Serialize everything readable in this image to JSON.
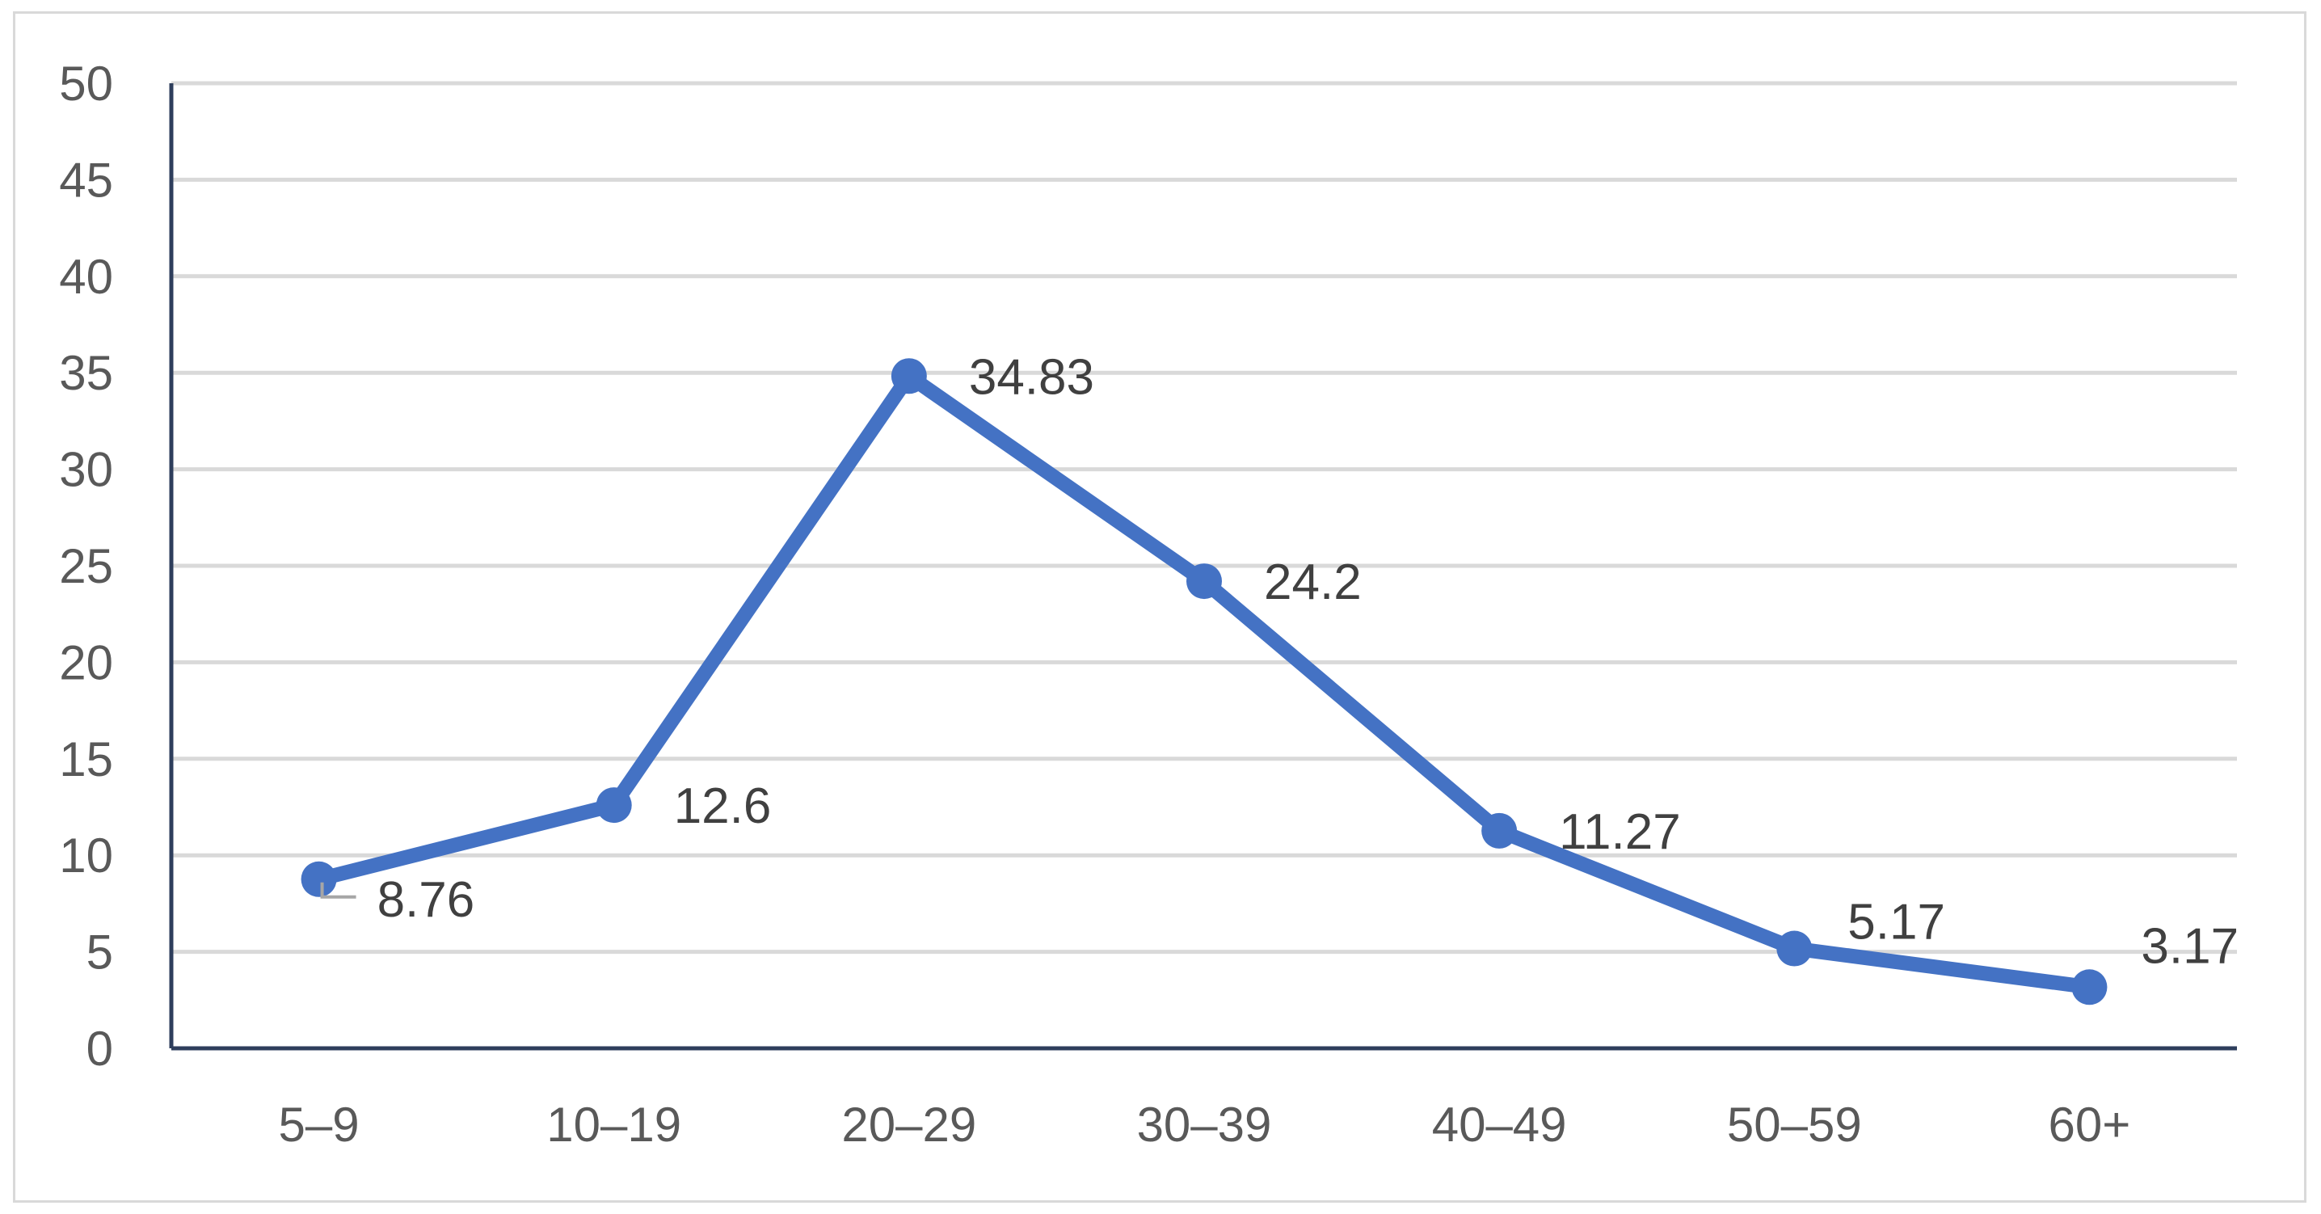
{
  "chart_data": {
    "type": "line",
    "title": "",
    "xlabel": "",
    "ylabel": "",
    "categories": [
      "5–9",
      "10–19",
      "20–29",
      "30–39",
      "40–49",
      "50–59",
      "60+"
    ],
    "series": [
      {
        "values": [
          8.76,
          12.6,
          34.83,
          24.2,
          11.27,
          5.17,
          3.17
        ],
        "data_labels": [
          "8.76",
          "12.6",
          "34.83",
          "24.2",
          "11.27",
          "5.17",
          "3.17"
        ]
      }
    ],
    "y_ticks": [
      "0",
      "5",
      "10",
      "15",
      "20",
      "25",
      "30",
      "35",
      "40",
      "45",
      "50"
    ],
    "ylim": [
      0,
      50
    ],
    "grid": true,
    "legend": "none",
    "colors": {
      "line": "#4472c4",
      "gridline": "#d9d9d9",
      "axis": "#2e3e5c",
      "tick_text": "#595959",
      "label_text": "#404040"
    }
  }
}
